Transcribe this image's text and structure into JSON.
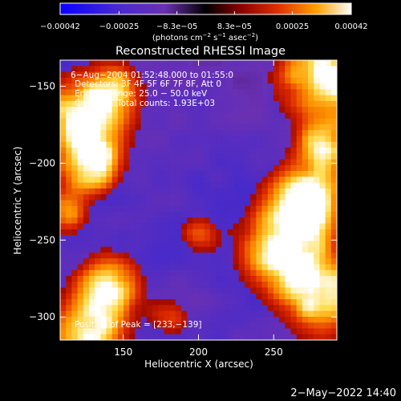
{
  "chart_data": {
    "type": "heatmap",
    "title": "Reconstructed RHESSI Image",
    "xlabel": "Heliocentric X (arcsec)",
    "ylabel": "Heliocentric Y (arcsec)",
    "xlim": [
      108,
      292
    ],
    "ylim": [
      -315,
      -133
    ],
    "x_ticks": [
      {
        "value": 150,
        "label": "150"
      },
      {
        "value": 200,
        "label": "200"
      },
      {
        "value": 250,
        "label": "250"
      }
    ],
    "y_ticks": [
      {
        "value": -150,
        "label": "−150"
      },
      {
        "value": -200,
        "label": "−200"
      },
      {
        "value": -250,
        "label": "−250"
      },
      {
        "value": -300,
        "label": "−300"
      }
    ],
    "colorbar": {
      "min": -0.00042,
      "max": 0.00042,
      "ticks": [
        {
          "value": -0.00042,
          "label": "−0.00042"
        },
        {
          "value": -0.00025,
          "label": "−0.00025"
        },
        {
          "value": -8.3e-05,
          "label": "−8.3e−05"
        },
        {
          "value": 8.3e-05,
          "label": "8.3e−05"
        },
        {
          "value": 0.00025,
          "label": "0.00025"
        },
        {
          "value": 0.00042,
          "label": "0.00042"
        }
      ],
      "units_prefix": "(photons cm",
      "units_exp1": "−2",
      "units_mid": " s",
      "units_exp2": "−1",
      "units_mid2": " asec",
      "units_exp3": "−2",
      "units_suffix": ")"
    },
    "annotations": {
      "time_range": "6−Aug−2004 01:52:48.000 to 01:55:0",
      "detectors": "Detectors: 3F 4F 5F 6F 7F 8F, Att 0",
      "energy": "Energy Range: 25.0 − 50.0 keV",
      "method": "Clean",
      "counts": "Total counts: 1.93E+03",
      "peak": "Position of Peak = [233,−139]"
    },
    "peak_position": [
      233,
      -139
    ],
    "colors": {
      "low": "#0000ff",
      "mid_low": "#6a2cc8",
      "zero": "#000000",
      "mid_high": "#e03000",
      "high": "#ffffff"
    }
  },
  "footer": {
    "date_stamp": "2−May−2022 14:40"
  }
}
